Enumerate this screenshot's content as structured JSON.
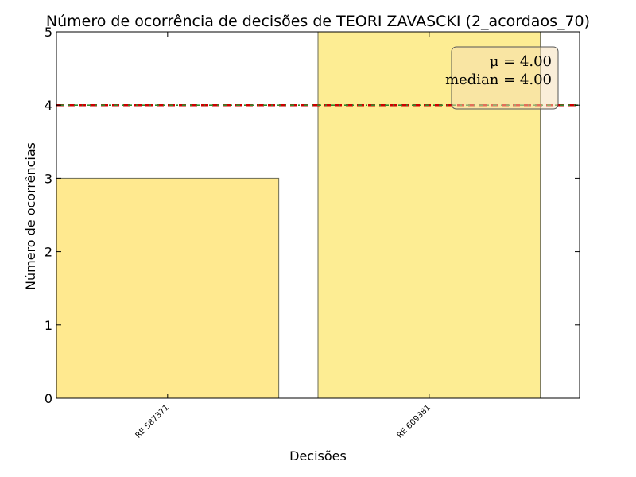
{
  "chart_data": {
    "type": "bar",
    "title": "Número de ocorrência de decisões de TEORI ZAVASCKI (2_acordaos_70)",
    "xlabel": "Decisões",
    "ylabel": "Número de ocorrências",
    "categories": [
      "RE 587371",
      "RE 609381"
    ],
    "values": [
      3,
      5
    ],
    "ylim": [
      0,
      5
    ],
    "yticks": [
      "0",
      "1",
      "2",
      "3",
      "4",
      "5"
    ],
    "mean": 4.0,
    "median": 4.0,
    "stats_text": {
      "mean_label": "μ = 4.00",
      "median_label": "median = 4.00"
    },
    "legend_placement": "top-right",
    "grid": false,
    "colors": {
      "bar_left": "#ffe98f",
      "bar_right": "#fded93",
      "bar_edge": "#6b6b55",
      "mean_line": "#cc0000",
      "median_line": "#2e8b2e",
      "stats_box": "#f5deb3"
    }
  }
}
